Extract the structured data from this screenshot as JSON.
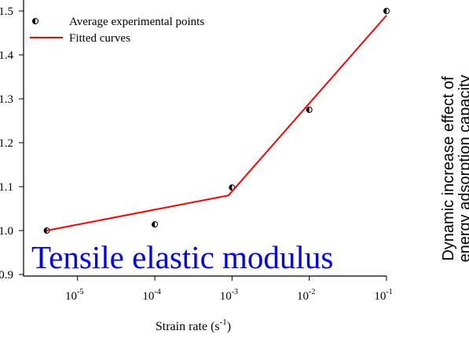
{
  "chart_data": {
    "type": "scatter",
    "x_label": {
      "text": "Strain rate (s",
      "exponent": "-1",
      "end": ")"
    },
    "annotation": "Tensile elastic modulus",
    "side_label": [
      "Dynamic increase effect of",
      "energy adsorption capacity"
    ],
    "log_x": true,
    "xlim": [
      2e-06,
      0.1
    ],
    "xticks": [
      {
        "value": 1e-05,
        "label": "10",
        "exponent": "-5"
      },
      {
        "value": 0.0001,
        "label": "10",
        "exponent": "-4"
      },
      {
        "value": 0.001,
        "label": "10",
        "exponent": "-3"
      },
      {
        "value": 0.01,
        "label": "10",
        "exponent": "-2"
      },
      {
        "value": 0.1,
        "label": "10",
        "exponent": "-1"
      }
    ],
    "ylim": [
      0.9,
      1.5
    ],
    "yticks": [
      0.9,
      {
        "value": 1,
        "label": "1.0"
      },
      1.1,
      1.2,
      1.3,
      1.4,
      1.5
    ],
    "series": [
      {
        "name": "Average experimental points",
        "type": "scatter",
        "color": "#000000",
        "x": [
          4e-06,
          0.0001,
          0.001,
          0.01,
          0.1
        ],
        "values": [
          1.0,
          1.014,
          1.098,
          1.275,
          1.5
        ]
      },
      {
        "name": "Fitted curves",
        "type": "line",
        "color": "#ff0000",
        "x": [
          4e-06,
          0.0009,
          0.1
        ],
        "values": [
          1.0,
          1.08,
          1.49
        ]
      }
    ],
    "annotation_color": "#0000ff"
  }
}
